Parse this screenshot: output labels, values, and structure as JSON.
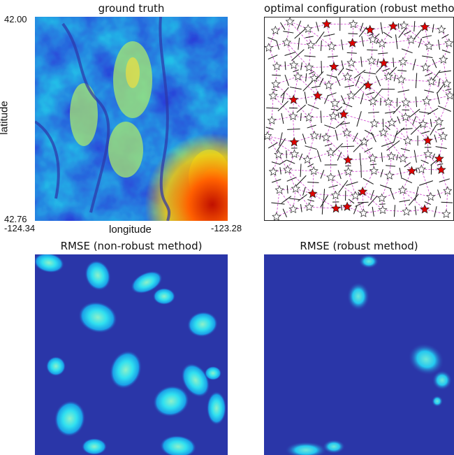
{
  "panels": {
    "ground_truth": {
      "title": "ground truth",
      "ylabel": "latitude",
      "xlabel": "longitude",
      "y_top_tick": "42.00",
      "y_bottom_tick": "42.76",
      "x_left_tick": "-124.34",
      "x_right_tick": "-123.28"
    },
    "optimal_config": {
      "title": "optimal configuration (robust method)"
    },
    "rmse_nonrobust": {
      "title": "RMSE (non-robust method)"
    },
    "rmse_robust": {
      "title": "RMSE (robust method)"
    }
  },
  "chart_data": [
    {
      "type": "heatmap",
      "title": "ground truth",
      "xlabel": "longitude",
      "ylabel": "latitude",
      "xlim": [
        -124.34,
        -123.28
      ],
      "ylim": [
        42.76,
        42.0
      ],
      "colormap": "jet"
    },
    {
      "type": "scatter",
      "title": "optimal configuration (robust method)",
      "legend": "none",
      "markers": {
        "red_star_color": "#e00000",
        "white_star_color": "#ffffff",
        "voronoi_edge_color": "#111111",
        "dashed_edge_color": "#d040d0"
      }
    },
    {
      "type": "heatmap",
      "title": "RMSE (non-robust method)",
      "colormap": "jet"
    },
    {
      "type": "heatmap",
      "title": "RMSE (robust method)",
      "colormap": "jet"
    }
  ]
}
